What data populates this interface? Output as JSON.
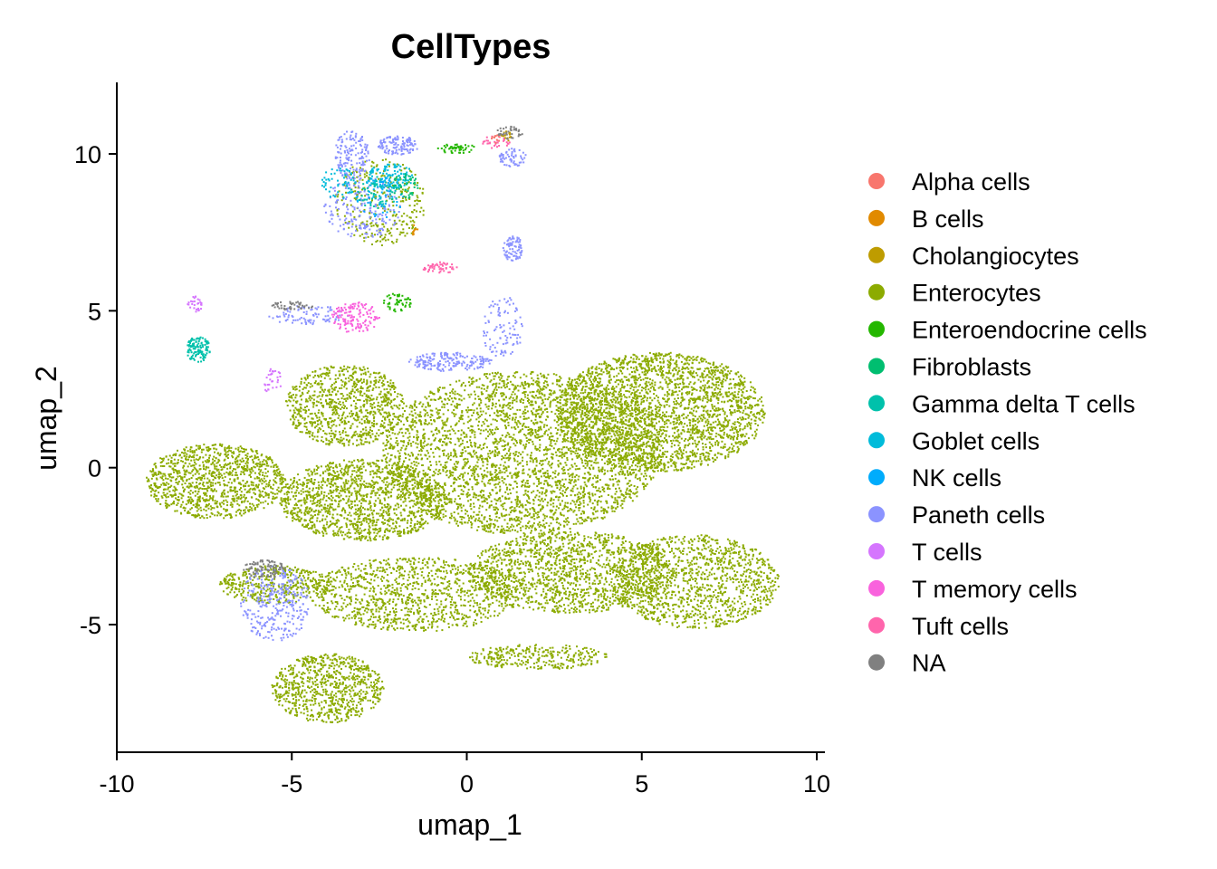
{
  "chart_data": {
    "type": "scatter",
    "title": "CellTypes",
    "xlabel": "umap_1",
    "ylabel": "umap_2",
    "xlim": [
      -10,
      10
    ],
    "ylim": [
      -9,
      12
    ],
    "x_ticks": [
      -10,
      -5,
      0,
      5,
      10
    ],
    "x_tick_labels": [
      "-10",
      "-5",
      "0",
      "5",
      "10"
    ],
    "y_ticks": [
      -5,
      0,
      5,
      10
    ],
    "y_tick_labels": [
      "-5",
      "0",
      "5",
      "10"
    ],
    "grid": false,
    "legend_position": "right",
    "series": [
      {
        "name": "Alpha cells",
        "color": "#F8766D"
      },
      {
        "name": "B cells",
        "color": "#E18A00"
      },
      {
        "name": "Cholangiocytes",
        "color": "#BE9C00"
      },
      {
        "name": "Enterocytes",
        "color": "#8CAB00"
      },
      {
        "name": "Enteroendocrine cells",
        "color": "#24B700"
      },
      {
        "name": "Fibroblasts",
        "color": "#00BE70"
      },
      {
        "name": "Gamma delta T cells",
        "color": "#00C1AB"
      },
      {
        "name": "Goblet cells",
        "color": "#00BBDA"
      },
      {
        "name": "NK cells",
        "color": "#00ACFC"
      },
      {
        "name": "Paneth cells",
        "color": "#8B93FF"
      },
      {
        "name": "T cells",
        "color": "#D575FE"
      },
      {
        "name": "T memory cells",
        "color": "#F962DD"
      },
      {
        "name": "Tuft cells",
        "color": "#FF65AC"
      },
      {
        "name": "NA",
        "color": "#808080"
      }
    ],
    "clusters": [
      {
        "series": "Enterocytes",
        "cx": 5.5,
        "cy": 1.8,
        "rx": 3.0,
        "ry": 1.9,
        "n": 2600
      },
      {
        "series": "Enterocytes",
        "cx": 1.5,
        "cy": 0.5,
        "rx": 4.0,
        "ry": 2.6,
        "n": 3400
      },
      {
        "series": "Enterocytes",
        "cx": -3.5,
        "cy": 2.0,
        "rx": 1.7,
        "ry": 1.3,
        "n": 900
      },
      {
        "series": "Enterocytes",
        "cx": -7.2,
        "cy": -0.4,
        "rx": 2.0,
        "ry": 1.2,
        "n": 1100
      },
      {
        "series": "Enterocytes",
        "cx": -3.0,
        "cy": -1.0,
        "rx": 2.4,
        "ry": 1.3,
        "n": 1400
      },
      {
        "series": "Enterocytes",
        "cx": 6.5,
        "cy": -3.6,
        "rx": 2.4,
        "ry": 1.5,
        "n": 1200
      },
      {
        "series": "Enterocytes",
        "cx": 3.0,
        "cy": -3.3,
        "rx": 3.0,
        "ry": 1.3,
        "n": 1500
      },
      {
        "series": "Enterocytes",
        "cx": -1.5,
        "cy": -4.0,
        "rx": 3.0,
        "ry": 1.2,
        "n": 1100
      },
      {
        "series": "Enterocytes",
        "cx": -4.0,
        "cy": -7.0,
        "rx": 1.6,
        "ry": 1.1,
        "n": 800
      },
      {
        "series": "Enterocytes",
        "cx": 2.0,
        "cy": -6.0,
        "rx": 2.0,
        "ry": 0.4,
        "n": 300
      },
      {
        "series": "Enterocytes",
        "cx": -5.5,
        "cy": -3.7,
        "rx": 1.6,
        "ry": 0.6,
        "n": 400
      },
      {
        "series": "Enterocytes",
        "cx": -2.5,
        "cy": 8.5,
        "rx": 1.3,
        "ry": 1.4,
        "n": 300
      },
      {
        "series": "Paneth cells",
        "cx": -3.3,
        "cy": 10.0,
        "rx": 0.5,
        "ry": 0.8,
        "n": 150
      },
      {
        "series": "Paneth cells",
        "cx": -2.0,
        "cy": 10.3,
        "rx": 0.6,
        "ry": 0.3,
        "n": 120
      },
      {
        "series": "Paneth cells",
        "cx": -3.0,
        "cy": 8.3,
        "rx": 1.1,
        "ry": 1.0,
        "n": 200
      },
      {
        "series": "Paneth cells",
        "cx": 1.3,
        "cy": 7.0,
        "rx": 0.3,
        "ry": 0.4,
        "n": 80
      },
      {
        "series": "Paneth cells",
        "cx": 1.0,
        "cy": 4.5,
        "rx": 0.6,
        "ry": 1.0,
        "n": 100
      },
      {
        "series": "Paneth cells",
        "cx": -0.5,
        "cy": 3.4,
        "rx": 1.2,
        "ry": 0.3,
        "n": 180
      },
      {
        "series": "Paneth cells",
        "cx": -5.5,
        "cy": -4.3,
        "rx": 1.0,
        "ry": 1.2,
        "n": 300
      },
      {
        "series": "Paneth cells",
        "cx": -4.6,
        "cy": 4.9,
        "rx": 1.2,
        "ry": 0.3,
        "n": 90
      },
      {
        "series": "Paneth cells",
        "cx": 1.3,
        "cy": 9.9,
        "rx": 0.4,
        "ry": 0.3,
        "n": 60
      },
      {
        "series": "Goblet cells",
        "cx": -2.2,
        "cy": 9.3,
        "rx": 0.7,
        "ry": 0.4,
        "n": 120
      },
      {
        "series": "Goblet cells",
        "cx": -3.7,
        "cy": 9.1,
        "rx": 0.5,
        "ry": 0.5,
        "n": 60
      },
      {
        "series": "Gamma delta T cells",
        "cx": -7.7,
        "cy": 3.8,
        "rx": 0.35,
        "ry": 0.4,
        "n": 120
      },
      {
        "series": "Gamma delta T cells",
        "cx": -2.6,
        "cy": 8.8,
        "rx": 0.6,
        "ry": 0.5,
        "n": 70
      },
      {
        "series": "NK cells",
        "cx": -2.5,
        "cy": 8.6,
        "rx": 0.7,
        "ry": 0.7,
        "n": 50
      },
      {
        "series": "T memory cells",
        "cx": -3.2,
        "cy": 4.8,
        "rx": 0.7,
        "ry": 0.5,
        "n": 140
      },
      {
        "series": "Tuft cells",
        "cx": -0.8,
        "cy": 6.4,
        "rx": 0.5,
        "ry": 0.2,
        "n": 50
      },
      {
        "series": "Tuft cells",
        "cx": 0.8,
        "cy": 10.4,
        "rx": 0.4,
        "ry": 0.2,
        "n": 30
      },
      {
        "series": "T cells",
        "cx": -7.8,
        "cy": 5.2,
        "rx": 0.2,
        "ry": 0.3,
        "n": 30
      },
      {
        "series": "T cells",
        "cx": -5.6,
        "cy": 2.8,
        "rx": 0.3,
        "ry": 0.4,
        "n": 30
      },
      {
        "series": "Enteroendocrine cells",
        "cx": -2.0,
        "cy": 5.3,
        "rx": 0.4,
        "ry": 0.3,
        "n": 50
      },
      {
        "series": "Enteroendocrine cells",
        "cx": -0.3,
        "cy": 10.2,
        "rx": 0.6,
        "ry": 0.15,
        "n": 50
      },
      {
        "series": "Fibroblasts",
        "cx": -1.8,
        "cy": 9.0,
        "rx": 0.4,
        "ry": 0.4,
        "n": 40
      },
      {
        "series": "Cholangiocytes",
        "cx": 1.1,
        "cy": 10.6,
        "rx": 0.2,
        "ry": 0.2,
        "n": 15
      },
      {
        "series": "B cells",
        "cx": -1.5,
        "cy": 7.6,
        "rx": 0.1,
        "ry": 0.2,
        "n": 10
      },
      {
        "series": "Alpha cells",
        "cx": 0.8,
        "cy": 10.5,
        "rx": 0.2,
        "ry": 0.15,
        "n": 10
      },
      {
        "series": "NA",
        "cx": -5.8,
        "cy": -3.2,
        "rx": 0.6,
        "ry": 0.3,
        "n": 90
      },
      {
        "series": "NA",
        "cx": -5.0,
        "cy": 5.2,
        "rx": 0.6,
        "ry": 0.15,
        "n": 50
      },
      {
        "series": "NA",
        "cx": 1.2,
        "cy": 10.7,
        "rx": 0.4,
        "ry": 0.2,
        "n": 40
      }
    ]
  }
}
